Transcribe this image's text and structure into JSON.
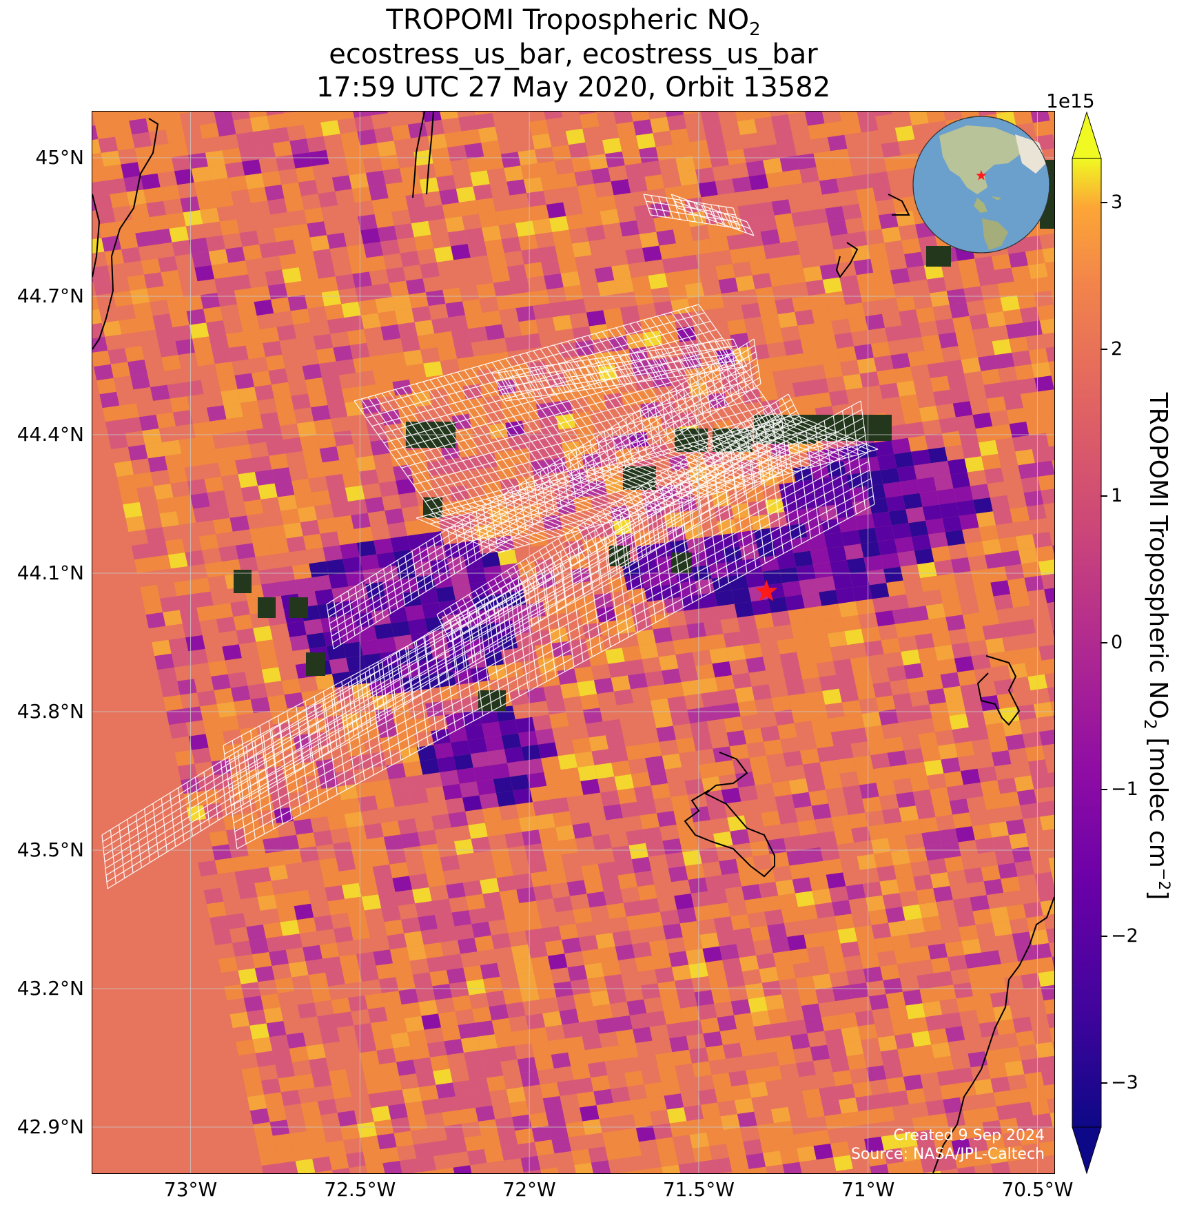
{
  "title": {
    "line1_prefix": "TROPOMI Tropospheric NO",
    "line1_sub": "2",
    "line2": "ecostress_us_bar, ecostress_us_bar",
    "line3": "17:59 UTC 27 May 2020, Orbit 13582"
  },
  "map": {
    "lon_range": [
      -73.29,
      -70.45
    ],
    "lat_range": [
      42.8,
      45.1
    ],
    "lat_ticks": [
      "45°N",
      "44.7°N",
      "44.4°N",
      "44.1°N",
      "43.8°N",
      "43.5°N",
      "43.2°N",
      "42.9°N"
    ],
    "lat_values": [
      45.0,
      44.7,
      44.4,
      44.1,
      43.8,
      43.5,
      43.2,
      42.9
    ],
    "lon_ticks": [
      "73°W",
      "72.5°W",
      "72°W",
      "71.5°W",
      "71°W",
      "70.5°W"
    ],
    "lon_values": [
      -73.0,
      -72.5,
      -72.0,
      -71.5,
      -71.0,
      -70.5
    ],
    "gridlines": true,
    "marker": {
      "symbol": "star",
      "color": "#ff1a1a",
      "lon": -71.3,
      "lat": 44.06
    },
    "inset_globe": {
      "position": "top-right",
      "marker_color": "#ff1a1a"
    }
  },
  "colorbar": {
    "label_prefix": "TROPOMI Tropospheric NO",
    "label_sub": "2",
    "label_middle": " [molec cm",
    "label_sup": "−2",
    "label_suffix": "]",
    "scale_exponent": "1e15",
    "ticks": [
      "3",
      "2",
      "1",
      "0",
      "−1",
      "−2",
      "−3"
    ],
    "tick_values": [
      3,
      2,
      1,
      0,
      -1,
      -2,
      -3
    ],
    "range": [
      -3.3,
      3.3
    ],
    "extend": "both",
    "colormap": "plasma"
  },
  "credit": {
    "created": "Created 9 Sep 2024",
    "source": "Source: NASA/JPL-Caltech"
  },
  "colors": {
    "orange": "#f0883f",
    "salmon": "#e7745c",
    "pink": "#d6597a",
    "magenta": "#b2339a",
    "purple": "#8b10a3",
    "deep_purple": "#5b02a3",
    "navy": "#2c0893",
    "yellow": "#f3d62e",
    "forest": "#23371c"
  }
}
